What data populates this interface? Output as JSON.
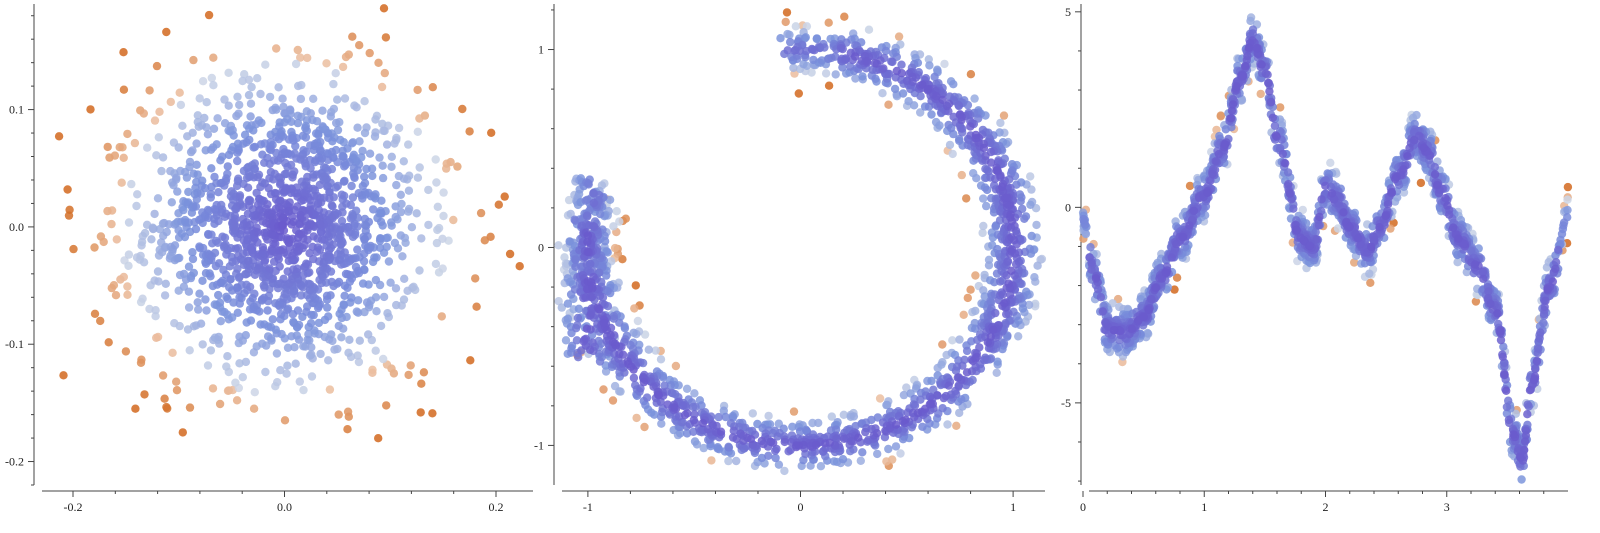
{
  "chart_data": [
    {
      "type": "scatter",
      "title": "",
      "xlabel": "",
      "ylabel": "",
      "grid": false,
      "shape": "gaussian-blob",
      "point_count": 1500,
      "xlim": [
        -0.235,
        0.235
      ],
      "ylim": [
        -0.22,
        0.19
      ],
      "x_ticks": [
        -0.2,
        0.0,
        0.2
      ],
      "x_tick_labels": [
        "-0.2",
        "0.0",
        "0.2"
      ],
      "y_ticks": [
        -0.2,
        -0.1,
        0.0,
        0.1
      ],
      "y_tick_labels": [
        "-0.2",
        "-0.1",
        "0.0",
        "0.1"
      ],
      "color_low": "#6a5acd",
      "color_high": "#d2691e"
    },
    {
      "type": "scatter",
      "title": "",
      "xlabel": "",
      "ylabel": "",
      "grid": false,
      "shape": "crescent-arc",
      "point_count": 1500,
      "xlim": [
        -1.15,
        1.15
      ],
      "ylim": [
        -1.2,
        1.23
      ],
      "x_ticks": [
        -1,
        0,
        1
      ],
      "x_tick_labels": [
        "-1",
        "0",
        "1"
      ],
      "y_ticks": [
        -1,
        0,
        1
      ],
      "y_tick_labels": [
        "-1",
        "0",
        "1"
      ],
      "color_low": "#6a5acd",
      "color_high": "#d2691e"
    },
    {
      "type": "scatter",
      "title": "",
      "xlabel": "",
      "ylabel": "",
      "grid": false,
      "shape": "noisy-curve",
      "point_count": 1500,
      "xlim": [
        0,
        4.0
      ],
      "ylim": [
        -7.1,
        5.2
      ],
      "x_ticks": [
        0,
        1,
        2,
        3
      ],
      "x_tick_labels": [
        "0",
        "1",
        "2",
        "3"
      ],
      "y_ticks": [
        -5,
        0,
        5
      ],
      "y_tick_labels": [
        "-5",
        "0",
        "5"
      ],
      "curve_points": [
        [
          0.0,
          -0.3
        ],
        [
          0.1,
          -1.8
        ],
        [
          0.2,
          -3.1
        ],
        [
          0.35,
          -3.2
        ],
        [
          0.5,
          -2.8
        ],
        [
          0.65,
          -1.8
        ],
        [
          0.8,
          -0.8
        ],
        [
          1.0,
          0.3
        ],
        [
          1.15,
          1.5
        ],
        [
          1.3,
          3.3
        ],
        [
          1.4,
          4.3
        ],
        [
          1.5,
          3.5
        ],
        [
          1.6,
          1.8
        ],
        [
          1.8,
          -0.8
        ],
        [
          1.9,
          -1.0
        ],
        [
          2.0,
          0.5
        ],
        [
          2.1,
          0.2
        ],
        [
          2.2,
          -0.5
        ],
        [
          2.35,
          -1.1
        ],
        [
          2.45,
          -0.5
        ],
        [
          2.6,
          0.8
        ],
        [
          2.75,
          1.8
        ],
        [
          2.85,
          1.4
        ],
        [
          2.95,
          0.4
        ],
        [
          3.1,
          -0.8
        ],
        [
          3.25,
          -1.5
        ],
        [
          3.4,
          -2.6
        ],
        [
          3.55,
          -5.8
        ],
        [
          3.62,
          -6.5
        ],
        [
          3.7,
          -4.5
        ],
        [
          3.85,
          -2.0
        ],
        [
          4.0,
          -0.2
        ]
      ],
      "color_low": "#6a5acd",
      "color_high": "#d2691e"
    }
  ]
}
